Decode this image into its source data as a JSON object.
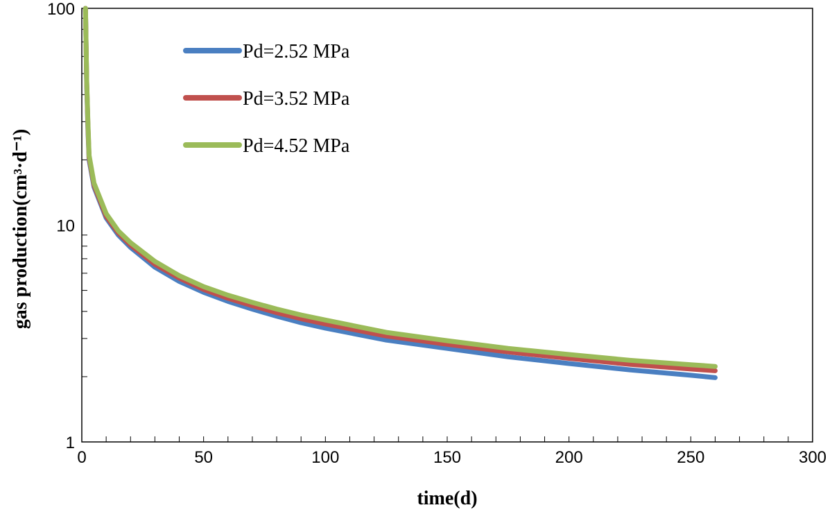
{
  "chart_data": {
    "type": "line",
    "xlabel": "time(d)",
    "ylabel": "gas production(cm³·d⁻¹)",
    "xlim": [
      0,
      300
    ],
    "ylim": [
      1,
      100
    ],
    "yscale": "log",
    "x_ticks": [
      "0",
      "50",
      "100",
      "150",
      "200",
      "250",
      "300"
    ],
    "y_ticks": [
      "1",
      "10",
      "100"
    ],
    "grid": false,
    "legend_position": "top-left",
    "series": [
      {
        "name": "Pd=2.52 MPa",
        "color": "#4a7fc1",
        "x": [
          1.5,
          2,
          2.5,
          3,
          5,
          10,
          15,
          20,
          30,
          40,
          50,
          60,
          70,
          80,
          90,
          100,
          125,
          150,
          175,
          200,
          225,
          250,
          260
        ],
        "y": [
          100,
          45,
          28,
          20,
          15,
          10.8,
          9.0,
          7.9,
          6.4,
          5.5,
          4.9,
          4.45,
          4.1,
          3.8,
          3.55,
          3.35,
          2.95,
          2.7,
          2.47,
          2.3,
          2.15,
          2.03,
          1.98
        ]
      },
      {
        "name": "Pd=3.52 MPa",
        "color": "#c0504d",
        "x": [
          1.5,
          2,
          2.5,
          3,
          5,
          10,
          15,
          20,
          30,
          40,
          50,
          60,
          70,
          80,
          90,
          100,
          125,
          150,
          175,
          200,
          225,
          250,
          260
        ],
        "y": [
          100,
          46,
          29,
          20.5,
          15.3,
          11.0,
          9.2,
          8.1,
          6.6,
          5.7,
          5.05,
          4.6,
          4.25,
          3.95,
          3.7,
          3.5,
          3.08,
          2.82,
          2.6,
          2.43,
          2.28,
          2.17,
          2.13
        ]
      },
      {
        "name": "Pd=4.52 MPa",
        "color": "#9bbb59",
        "x": [
          1.5,
          2,
          2.5,
          3,
          5,
          10,
          15,
          20,
          30,
          40,
          50,
          60,
          70,
          80,
          90,
          100,
          125,
          150,
          175,
          200,
          225,
          250,
          260
        ],
        "y": [
          100,
          47,
          30,
          21,
          15.6,
          11.3,
          9.4,
          8.3,
          6.8,
          5.85,
          5.2,
          4.75,
          4.4,
          4.1,
          3.85,
          3.65,
          3.2,
          2.93,
          2.7,
          2.53,
          2.38,
          2.27,
          2.23
        ]
      }
    ]
  }
}
